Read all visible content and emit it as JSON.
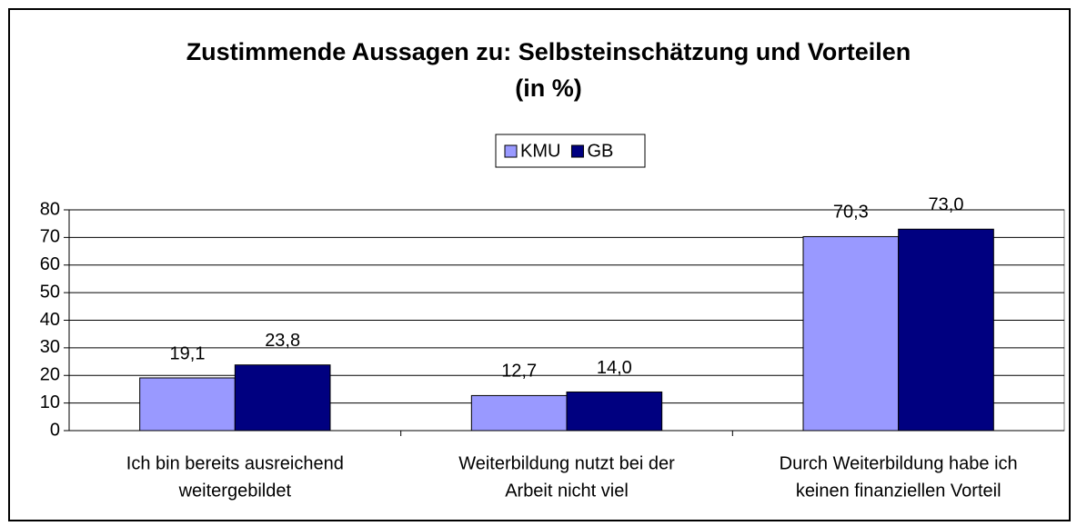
{
  "chart_data": {
    "type": "bar",
    "title": [
      "Zustimmende Aussagen zu: Selbsteinschätzung und Vorteilen",
      "(in %)"
    ],
    "categories": [
      [
        "Ich bin bereits ausreichend",
        "weitergebildet"
      ],
      [
        "Weiterbildung nutzt bei der",
        "Arbeit nicht viel"
      ],
      [
        "Durch Weiterbildung habe ich",
        "keinen finanziellen Vorteil"
      ]
    ],
    "series": [
      {
        "name": "KMU",
        "color": "#9999ff",
        "values": [
          19.1,
          12.7,
          70.3
        ],
        "value_labels": [
          "19,1",
          "12,7",
          "70,3"
        ]
      },
      {
        "name": "GB",
        "color": "#000080",
        "values": [
          23.8,
          14.0,
          73.0
        ],
        "value_labels": [
          "23,8",
          "14,0",
          "73,0"
        ]
      }
    ],
    "ylim": [
      0,
      80
    ],
    "yticks": [
      0,
      10,
      20,
      30,
      40,
      50,
      60,
      70,
      80
    ],
    "grid": true,
    "legend": "top"
  }
}
